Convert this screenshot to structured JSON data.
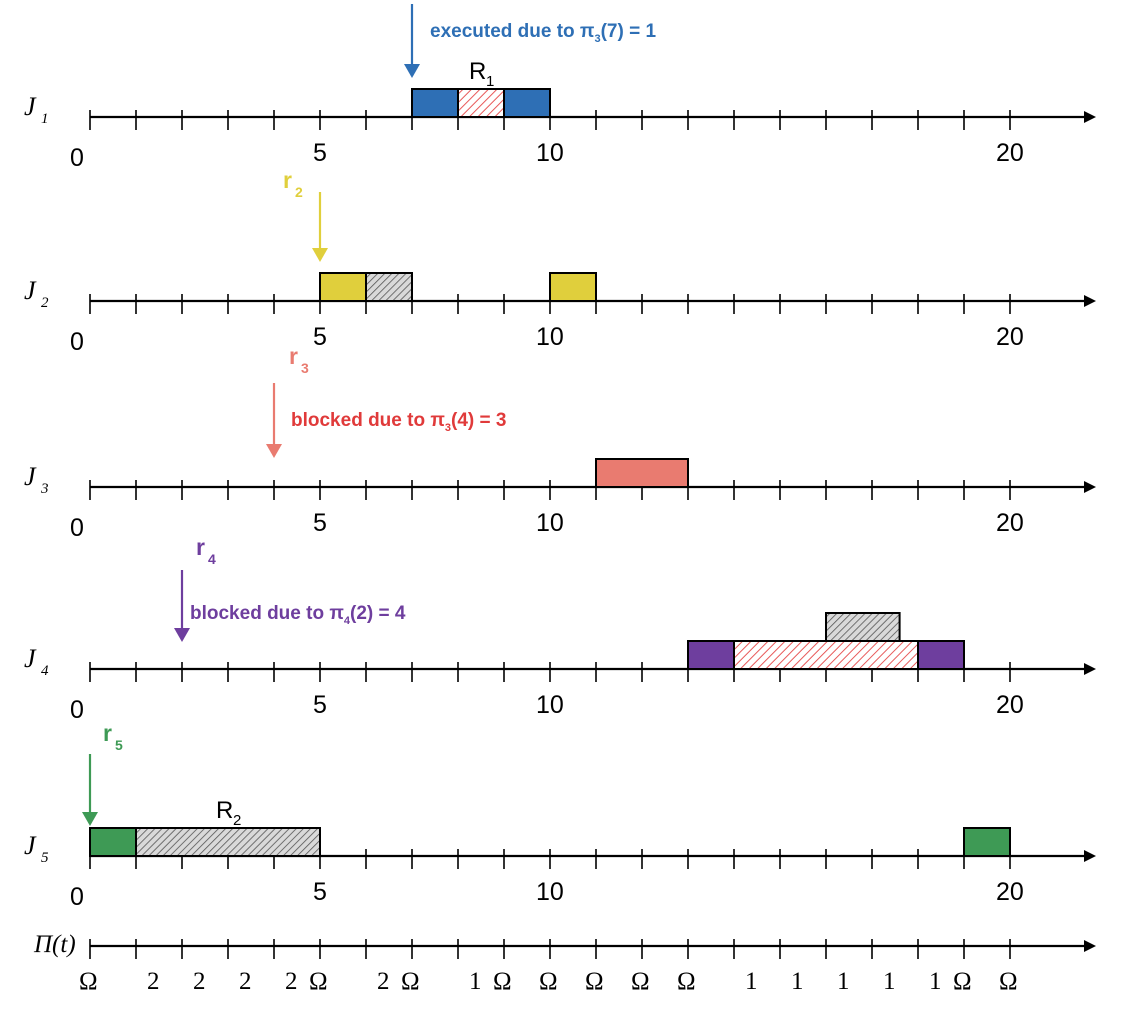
{
  "colors": {
    "J1": "#2e6fb5",
    "J2": "#e0cf3c",
    "J3": "#e97b70",
    "J4": "#6e3e9e",
    "J5": "#3e9a55",
    "hatch_red": "#e85a5a",
    "hatch_gray": "#666666",
    "note_blue": "#2e6fb5",
    "note_red": "#e03a3a",
    "note_purple": "#6e3e9e"
  },
  "axis": {
    "tick_labels": [
      "0",
      "5",
      "10",
      "20"
    ]
  },
  "rows": [
    {
      "job": "J",
      "job_sub": "1",
      "color": "J1",
      "release": {
        "text": "",
        "sub": "",
        "t": 7,
        "note": "executed due to π",
        "note_sub": "3",
        "note_tail": "(7) = 1",
        "note_color": "note_blue"
      },
      "blocks": [
        {
          "start": 7,
          "end": 8,
          "kind": "solid"
        },
        {
          "start": 8,
          "end": 9,
          "kind": "hatch-red"
        },
        {
          "start": 9,
          "end": 10,
          "kind": "solid"
        }
      ],
      "resource": {
        "text": "R",
        "sub": "1",
        "t": 8.5
      }
    },
    {
      "job": "J",
      "job_sub": "2",
      "color": "J2",
      "release": {
        "text": "r",
        "sub": "2",
        "t": 5,
        "note": "",
        "note_sub": "",
        "note_tail": "",
        "note_color": ""
      },
      "blocks": [
        {
          "start": 5,
          "end": 6,
          "kind": "solid"
        },
        {
          "start": 6,
          "end": 7,
          "kind": "hatch-gray"
        },
        {
          "start": 10,
          "end": 11,
          "kind": "solid"
        }
      ]
    },
    {
      "job": "J",
      "job_sub": "3",
      "color": "J3",
      "release": {
        "text": "r",
        "sub": "3",
        "t": 4,
        "note": "blocked due to π",
        "note_sub": "3",
        "note_tail": "(4) = 3",
        "note_color": "note_red"
      },
      "blocks": [
        {
          "start": 11,
          "end": 13,
          "kind": "solid"
        }
      ]
    },
    {
      "job": "J",
      "job_sub": "4",
      "color": "J4",
      "release": {
        "text": "r",
        "sub": "4",
        "t": 2,
        "note": "blocked due to π",
        "note_sub": "4",
        "note_tail": "(2) = 4",
        "note_color": "note_purple"
      },
      "blocks": [
        {
          "start": 13,
          "end": 14,
          "kind": "solid"
        },
        {
          "start": 14,
          "end": 18,
          "kind": "hatch-red"
        },
        {
          "start": 18,
          "end": 19,
          "kind": "solid"
        },
        {
          "start": 16,
          "end": 17.6,
          "kind": "hatch-gray",
          "level": 2
        }
      ]
    },
    {
      "job": "J",
      "job_sub": "5",
      "color": "J5",
      "release": {
        "text": "r",
        "sub": "5",
        "t": 0,
        "note": "",
        "note_sub": "",
        "note_tail": "",
        "note_color": ""
      },
      "blocks": [
        {
          "start": 0,
          "end": 1,
          "kind": "solid"
        },
        {
          "start": 1,
          "end": 5,
          "kind": "hatch-gray"
        },
        {
          "start": 19,
          "end": 20,
          "kind": "solid"
        }
      ],
      "resource": {
        "text": "R",
        "sub": "2",
        "t": 3
      }
    }
  ],
  "pi_row": {
    "label": "Π(t)",
    "values": [
      "Ω",
      "2",
      "2",
      "2",
      "2",
      "Ω",
      "2",
      "Ω",
      "1",
      "Ω",
      "Ω",
      "Ω",
      "Ω",
      "Ω",
      "1",
      "1",
      "1",
      "1",
      "1",
      "Ω",
      "Ω"
    ]
  }
}
